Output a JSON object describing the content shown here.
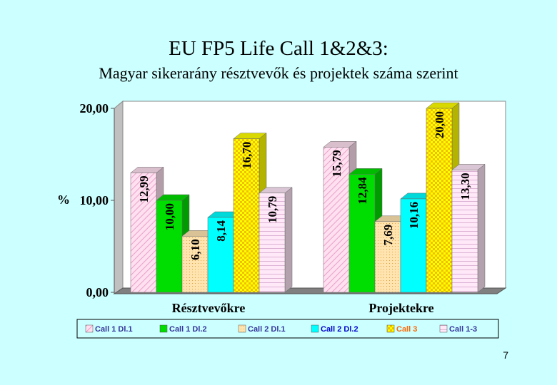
{
  "title": "EU FP5 Life Call 1&2&3:",
  "subtitle": "Magyar sikerarány résztvevők és projektek száma szerint",
  "page_number": "7",
  "chart_data": {
    "type": "bar",
    "ylabel": "%",
    "ylim": [
      0,
      20
    ],
    "yticks": [
      0,
      10,
      20
    ],
    "ytick_labels": [
      "0,00",
      "10,00",
      "20,00"
    ],
    "categories": [
      "Résztvevőkre",
      "Projektekre"
    ],
    "series": [
      {
        "name": "Call 1 Dl.1",
        "values": [
          12.99,
          15.79
        ],
        "labels": [
          "12,99",
          "15,79"
        ],
        "color": "#ffe0f0",
        "pattern": "hatch"
      },
      {
        "name": "Call 1 Dl.2",
        "values": [
          10.0,
          12.84
        ],
        "labels": [
          "10,00",
          "12,84"
        ],
        "color": "#00dd00",
        "pattern": "solid"
      },
      {
        "name": "Call 2 Dl.1",
        "values": [
          6.1,
          7.69
        ],
        "labels": [
          "6,10",
          "7,69"
        ],
        "color": "#ffe4b0",
        "pattern": "dots"
      },
      {
        "name": "Call 2 Dl.2",
        "values": [
          8.14,
          10.16
        ],
        "labels": [
          "8,14",
          "10,16"
        ],
        "color": "#00ffff",
        "pattern": "solid"
      },
      {
        "name": "Call 3",
        "values": [
          16.7,
          20.0
        ],
        "labels": [
          "16,70",
          "20,00"
        ],
        "color": "#ffff00",
        "pattern": "checker"
      },
      {
        "name": "Call 1-3",
        "values": [
          10.79,
          13.3
        ],
        "labels": [
          "10,79",
          "13,30"
        ],
        "color": "#ffe8f8",
        "pattern": "lines"
      }
    ],
    "legend_position": "bottom",
    "grid": false
  }
}
